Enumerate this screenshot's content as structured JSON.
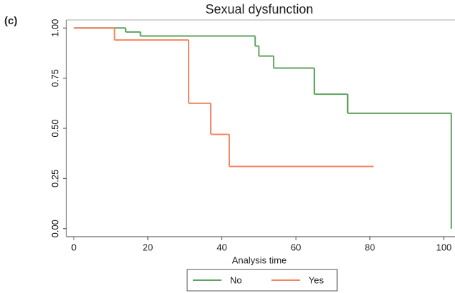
{
  "panel_label": "(c)",
  "chart_data": {
    "type": "step",
    "title": "Sexual dysfunction",
    "x_label": "Analysis time",
    "xlim": [
      -2,
      103
    ],
    "ylim": [
      -0.04,
      1.04
    ],
    "xticks": [
      0,
      20,
      40,
      60,
      80,
      100
    ],
    "yticks": [
      {
        "value": 0,
        "label": "0.00"
      },
      {
        "value": 0.25,
        "label": "0.25"
      },
      {
        "value": 0.5,
        "label": "0.50"
      },
      {
        "value": 0.75,
        "label": "0.75"
      },
      {
        "value": 1,
        "label": "1.00"
      }
    ],
    "legend": "bottom",
    "series": [
      {
        "name": "No",
        "color": "#5fa35f",
        "x": [
          0,
          14,
          18,
          49,
          50,
          54,
          65,
          74,
          102
        ],
        "values": [
          1,
          0.98,
          0.96,
          0.91,
          0.86,
          0.8,
          0.67,
          0.575,
          0
        ]
      },
      {
        "name": "Yes",
        "color": "#f4845f",
        "x": [
          0,
          11,
          31,
          37,
          42,
          81
        ],
        "values": [
          1,
          0.94,
          0.625,
          0.47,
          0.31,
          0.31
        ]
      }
    ]
  }
}
